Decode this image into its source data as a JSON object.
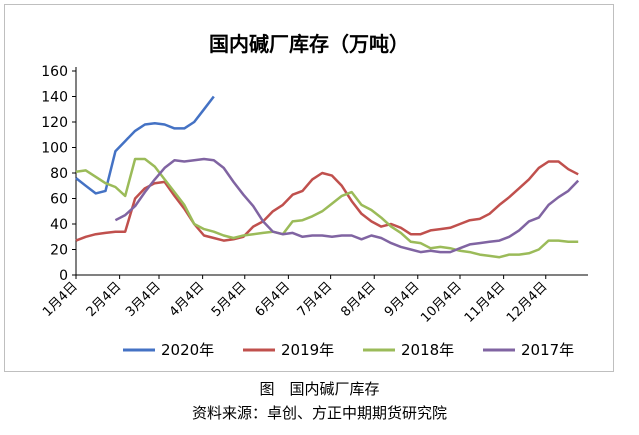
{
  "figure": {
    "caption": "图　国内碱厂库存",
    "source": "资料来源：卓创、方正中期期货研究院"
  },
  "chart_data": {
    "type": "line",
    "title": "国内碱厂库存（万吨）",
    "xlabel": "",
    "ylabel": "",
    "ylim": [
      0,
      160
    ],
    "yticks": [
      0,
      20,
      40,
      60,
      80,
      100,
      120,
      140,
      160
    ],
    "xlim": [
      0,
      52
    ],
    "xticks": [
      {
        "label": "1月4日",
        "week": 0
      },
      {
        "label": "2月4日",
        "week": 4.43
      },
      {
        "label": "3月4日",
        "week": 8.43
      },
      {
        "label": "4月4日",
        "week": 12.86
      },
      {
        "label": "5月4日",
        "week": 17.14
      },
      {
        "label": "6月4日",
        "week": 21.57
      },
      {
        "label": "7月4日",
        "week": 25.86
      },
      {
        "label": "8月4日",
        "week": 30.29
      },
      {
        "label": "9月4日",
        "week": 34.71
      },
      {
        "label": "10月4日",
        "week": 39.0
      },
      {
        "label": "11月4日",
        "week": 43.43
      },
      {
        "label": "12月4日",
        "week": 47.71
      }
    ],
    "grid": false,
    "legend": "bottom",
    "series": [
      {
        "name": "2020年",
        "color": "#4472c4",
        "x": [
          0,
          1,
          2,
          3,
          4,
          5,
          6,
          7,
          8,
          9,
          10,
          11,
          12,
          13,
          14
        ],
        "values": [
          76,
          70,
          64,
          66,
          97,
          105,
          113,
          118,
          119,
          118,
          115,
          115,
          120,
          130,
          140
        ]
      },
      {
        "name": "2019年",
        "color": "#c0504d",
        "x": [
          0,
          1,
          2,
          3,
          4,
          5,
          6,
          7,
          8,
          9,
          10,
          11,
          12,
          13,
          14,
          15,
          16,
          17,
          18,
          19,
          20,
          21,
          22,
          23,
          24,
          25,
          26,
          27,
          28,
          29,
          30,
          31,
          32,
          33,
          34,
          35,
          36,
          37,
          38,
          39,
          40,
          41,
          42,
          43,
          44,
          45,
          46,
          47,
          48,
          49,
          50,
          51
        ],
        "values": [
          27,
          30,
          32,
          33,
          34,
          34,
          60,
          68,
          72,
          73,
          62,
          52,
          40,
          31,
          29,
          27,
          28,
          30,
          38,
          42,
          50,
          55,
          63,
          66,
          75,
          80,
          78,
          70,
          58,
          48,
          42,
          38,
          40,
          37,
          32,
          32,
          35,
          36,
          37,
          40,
          43,
          44,
          48,
          55,
          61,
          68,
          75,
          84,
          89,
          89,
          83,
          79
        ]
      },
      {
        "name": "2018年",
        "color": "#9bbb59",
        "x": [
          0,
          1,
          2,
          3,
          4,
          5,
          6,
          7,
          8,
          9,
          10,
          11,
          12,
          13,
          14,
          15,
          16,
          17,
          18,
          19,
          20,
          21,
          22,
          23,
          24,
          25,
          26,
          27,
          28,
          29,
          30,
          31,
          32,
          33,
          34,
          35,
          36,
          37,
          38,
          39,
          40,
          41,
          42,
          43,
          44,
          45,
          46,
          47,
          48,
          49,
          50,
          51
        ],
        "values": [
          81,
          82,
          77,
          72,
          69,
          62,
          91,
          91,
          85,
          75,
          65,
          55,
          40,
          36,
          34,
          31,
          29,
          31,
          32,
          33,
          34,
          32,
          42,
          43,
          46,
          50,
          56,
          62,
          65,
          55,
          51,
          45,
          38,
          33,
          26,
          25,
          21,
          22,
          21,
          19,
          18,
          16,
          15,
          14,
          16,
          16,
          17,
          20,
          27,
          27,
          26,
          26
        ]
      },
      {
        "name": "2017年",
        "color": "#8064a2",
        "x": [
          4,
          5,
          6,
          7,
          8,
          9,
          10,
          11,
          12,
          13,
          14,
          15,
          16,
          17,
          18,
          19,
          20,
          21,
          22,
          23,
          24,
          25,
          26,
          27,
          28,
          29,
          30,
          31,
          32,
          33,
          34,
          35,
          36,
          37,
          38,
          39,
          40,
          41,
          42,
          43,
          44,
          45,
          46,
          47,
          48,
          49,
          50,
          51
        ],
        "values": [
          43,
          47,
          54,
          65,
          75,
          84,
          90,
          89,
          90,
          91,
          90,
          84,
          73,
          63,
          54,
          42,
          34,
          32,
          33,
          30,
          31,
          31,
          30,
          31,
          31,
          28,
          31,
          29,
          25,
          22,
          20,
          18,
          19,
          18,
          18,
          21,
          24,
          25,
          26,
          27,
          30,
          35,
          42,
          45,
          55,
          61,
          66,
          74
        ]
      }
    ]
  }
}
